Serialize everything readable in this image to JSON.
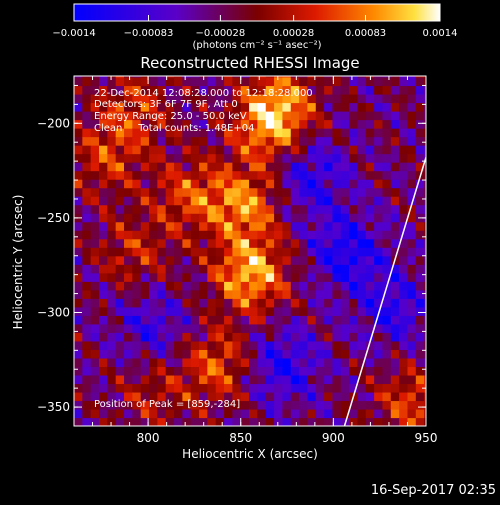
{
  "chart_data": {
    "type": "heatmap",
    "title": "Reconstructed RHESSI Image",
    "xlabel": "Heliocentric X (arcsec)",
    "ylabel": "Heliocentric Y (arcsec)",
    "xlim": [
      760,
      950
    ],
    "ylim": [
      -360,
      -175
    ],
    "x_ticks": [
      "800",
      "850",
      "900",
      "950"
    ],
    "y_ticks": [
      "-200",
      "-250",
      "-300",
      "-350"
    ],
    "colorbar": {
      "range": [
        -0.0014,
        0.0014
      ],
      "tick_labels": [
        "-0.0014",
        "-0.00083",
        "-0.00028",
        "0.00028",
        "0.00083",
        "0.0014"
      ],
      "unit_label": "(photons cm⁻² s⁻¹ asec⁻²)"
    },
    "annotations": [
      "22-Dec-2014 12:08:28.000 to 12:18:28.000",
      "Detectors: 3F 6F 7F 9F, Att 0",
      "Energy Range: 25.0 - 50.0 keV",
      "Clean     Total counts: 1.48E+04"
    ],
    "peak_label": "Position of Peak = [859,-284]",
    "peak": [
      859,
      -284
    ],
    "limb_line": [
      [
        906,
        -360
      ],
      [
        950,
        -218
      ]
    ],
    "bright_sources": [
      {
        "x": 853,
        "y": -282,
        "intensity": 0.00135
      },
      {
        "x": 850,
        "y": -245,
        "intensity": 0.0011
      },
      {
        "x": 862,
        "y": -205,
        "intensity": 0.001
      },
      {
        "x": 870,
        "y": -190,
        "intensity": 0.0009
      },
      {
        "x": 820,
        "y": -240,
        "intensity": 0.0008
      },
      {
        "x": 775,
        "y": -220,
        "intensity": 0.0007
      },
      {
        "x": 835,
        "y": -330,
        "intensity": 0.0009
      },
      {
        "x": 790,
        "y": -270,
        "intensity": 0.0006
      },
      {
        "x": 790,
        "y": -195,
        "intensity": 0.0007
      },
      {
        "x": 940,
        "y": -350,
        "intensity": 0.0008
      },
      {
        "x": 800,
        "y": -345,
        "intensity": 0.0005
      }
    ],
    "dark_regions": [
      {
        "x": 885,
        "y": -230,
        "intensity": -0.0008
      },
      {
        "x": 905,
        "y": -270,
        "intensity": -0.0009
      },
      {
        "x": 870,
        "y": -330,
        "intensity": -0.0008
      },
      {
        "x": 930,
        "y": -300,
        "intensity": -0.0007
      },
      {
        "x": 800,
        "y": -310,
        "intensity": -0.0006
      }
    ]
  },
  "footer": {
    "timestamp": "16-Sep-2017 02:35"
  }
}
